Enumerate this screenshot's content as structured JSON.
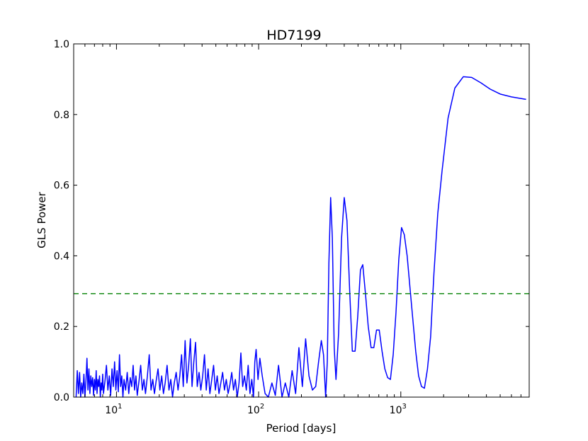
{
  "chart_data": {
    "type": "line",
    "title": "HD7199",
    "xlabel": "Period [days]",
    "ylabel": "GLS Power",
    "x_scale": "log",
    "xlim": [
      5,
      8000
    ],
    "ylim": [
      0.0,
      1.0
    ],
    "grid": false,
    "legend": "none",
    "x_ticks": [
      {
        "value": 10,
        "base": "10",
        "exp": "1"
      },
      {
        "value": 100,
        "base": "10",
        "exp": "2"
      },
      {
        "value": 1000,
        "base": "10",
        "exp": "3"
      }
    ],
    "y_ticks": [
      {
        "value": 0.0,
        "label": "0.0"
      },
      {
        "value": 0.2,
        "label": "0.2"
      },
      {
        "value": 0.4,
        "label": "0.4"
      },
      {
        "value": 0.6,
        "label": "0.6"
      },
      {
        "value": 0.8,
        "label": "0.8"
      },
      {
        "value": 1.0,
        "label": "1.0"
      }
    ],
    "threshold": {
      "y": 0.293,
      "color": "#008000",
      "style": "dashed"
    },
    "series": [
      {
        "color": "#0000ff",
        "points": [
          [
            5.2,
            0.0
          ],
          [
            5.3,
            0.075
          ],
          [
            5.4,
            0.01
          ],
          [
            5.5,
            0.07
          ],
          [
            5.6,
            0.0
          ],
          [
            5.7,
            0.04
          ],
          [
            5.8,
            0.01
          ],
          [
            5.9,
            0.065
          ],
          [
            6.0,
            0.0
          ],
          [
            6.1,
            0.045
          ],
          [
            6.2,
            0.11
          ],
          [
            6.3,
            0.02
          ],
          [
            6.4,
            0.08
          ],
          [
            6.5,
            0.01
          ],
          [
            6.6,
            0.06
          ],
          [
            6.7,
            0.03
          ],
          [
            6.8,
            0.055
          ],
          [
            6.9,
            0.005
          ],
          [
            7.0,
            0.05
          ],
          [
            7.1,
            0.02
          ],
          [
            7.2,
            0.075
          ],
          [
            7.3,
            0.01
          ],
          [
            7.4,
            0.05
          ],
          [
            7.5,
            0.03
          ],
          [
            7.6,
            0.06
          ],
          [
            7.7,
            0.0
          ],
          [
            7.8,
            0.04
          ],
          [
            7.9,
            0.02
          ],
          [
            8.0,
            0.065
          ],
          [
            8.1,
            0.01
          ],
          [
            8.3,
            0.045
          ],
          [
            8.5,
            0.09
          ],
          [
            8.7,
            0.02
          ],
          [
            8.9,
            0.06
          ],
          [
            9.1,
            0.005
          ],
          [
            9.3,
            0.08
          ],
          [
            9.5,
            0.03
          ],
          [
            9.7,
            0.1
          ],
          [
            9.9,
            0.02
          ],
          [
            10.1,
            0.075
          ],
          [
            10.3,
            0.015
          ],
          [
            10.5,
            0.12
          ],
          [
            10.7,
            0.03
          ],
          [
            10.9,
            0.06
          ],
          [
            11.1,
            0.0
          ],
          [
            11.3,
            0.05
          ],
          [
            11.6,
            0.02
          ],
          [
            11.9,
            0.07
          ],
          [
            12.2,
            0.01
          ],
          [
            12.5,
            0.055
          ],
          [
            12.8,
            0.03
          ],
          [
            13.1,
            0.09
          ],
          [
            13.4,
            0.02
          ],
          [
            13.7,
            0.06
          ],
          [
            14.0,
            0.005
          ],
          [
            14.4,
            0.045
          ],
          [
            14.8,
            0.09
          ],
          [
            15.2,
            0.02
          ],
          [
            15.6,
            0.05
          ],
          [
            16.0,
            0.01
          ],
          [
            16.5,
            0.06
          ],
          [
            17.0,
            0.12
          ],
          [
            17.5,
            0.02
          ],
          [
            18.0,
            0.05
          ],
          [
            18.5,
            0.01
          ],
          [
            19.0,
            0.045
          ],
          [
            19.6,
            0.08
          ],
          [
            20.2,
            0.02
          ],
          [
            20.8,
            0.06
          ],
          [
            21.4,
            0.01
          ],
          [
            22.0,
            0.04
          ],
          [
            22.7,
            0.09
          ],
          [
            23.4,
            0.02
          ],
          [
            24.1,
            0.05
          ],
          [
            24.8,
            0.0
          ],
          [
            25.5,
            0.04
          ],
          [
            26.3,
            0.07
          ],
          [
            27.1,
            0.02
          ],
          [
            27.9,
            0.06
          ],
          [
            28.7,
            0.12
          ],
          [
            29.5,
            0.03
          ],
          [
            30.4,
            0.16
          ],
          [
            31.3,
            0.04
          ],
          [
            32.2,
            0.09
          ],
          [
            33.1,
            0.165
          ],
          [
            34.0,
            0.03
          ],
          [
            35.0,
            0.1
          ],
          [
            36.0,
            0.155
          ],
          [
            37.0,
            0.03
          ],
          [
            38.1,
            0.07
          ],
          [
            39.2,
            0.02
          ],
          [
            40.4,
            0.06
          ],
          [
            41.6,
            0.12
          ],
          [
            42.8,
            0.02
          ],
          [
            44.1,
            0.08
          ],
          [
            45.4,
            0.01
          ],
          [
            46.8,
            0.05
          ],
          [
            48.2,
            0.09
          ],
          [
            49.6,
            0.02
          ],
          [
            51.1,
            0.06
          ],
          [
            52.6,
            0.01
          ],
          [
            54.2,
            0.04
          ],
          [
            55.8,
            0.07
          ],
          [
            57.5,
            0.02
          ],
          [
            59.2,
            0.05
          ],
          [
            61.0,
            0.01
          ],
          [
            62.8,
            0.035
          ],
          [
            64.7,
            0.07
          ],
          [
            66.6,
            0.02
          ],
          [
            68.6,
            0.05
          ],
          [
            70.7,
            0.0
          ],
          [
            72.8,
            0.04
          ],
          [
            75.0,
            0.125
          ],
          [
            77.2,
            0.03
          ],
          [
            79.5,
            0.06
          ],
          [
            81.9,
            0.02
          ],
          [
            84.4,
            0.09
          ],
          [
            86.9,
            0.01
          ],
          [
            89.5,
            0.05
          ],
          [
            92.0,
            0.0
          ],
          [
            94.0,
            0.1
          ],
          [
            96.0,
            0.135
          ],
          [
            99.0,
            0.05
          ],
          [
            102.0,
            0.11
          ],
          [
            106.0,
            0.06
          ],
          [
            111.0,
            0.01
          ],
          [
            117.0,
            0.0
          ],
          [
            124.0,
            0.04
          ],
          [
            131.0,
            0.005
          ],
          [
            138.0,
            0.09
          ],
          [
            146.0,
            0.0
          ],
          [
            154.0,
            0.04
          ],
          [
            163.0,
            0.0
          ],
          [
            172.0,
            0.075
          ],
          [
            182.0,
            0.01
          ],
          [
            192.0,
            0.14
          ],
          [
            203.0,
            0.03
          ],
          [
            214.0,
            0.165
          ],
          [
            226.0,
            0.06
          ],
          [
            239.0,
            0.02
          ],
          [
            252.0,
            0.03
          ],
          [
            264.0,
            0.1
          ],
          [
            276.0,
            0.16
          ],
          [
            286.0,
            0.12
          ],
          [
            296.0,
            0.0
          ],
          [
            304.0,
            0.1
          ],
          [
            312.0,
            0.38
          ],
          [
            321.0,
            0.565
          ],
          [
            330.0,
            0.45
          ],
          [
            340.0,
            0.14
          ],
          [
            350.0,
            0.05
          ],
          [
            365.0,
            0.18
          ],
          [
            383.0,
            0.45
          ],
          [
            400.0,
            0.565
          ],
          [
            418.0,
            0.5
          ],
          [
            437.0,
            0.3
          ],
          [
            456.0,
            0.13
          ],
          [
            477.0,
            0.13
          ],
          [
            498.0,
            0.23
          ],
          [
            520.0,
            0.36
          ],
          [
            540.0,
            0.375
          ],
          [
            565.0,
            0.29
          ],
          [
            590.0,
            0.2
          ],
          [
            618.0,
            0.14
          ],
          [
            646.0,
            0.14
          ],
          [
            675.0,
            0.19
          ],
          [
            705.0,
            0.19
          ],
          [
            738.0,
            0.13
          ],
          [
            772.0,
            0.08
          ],
          [
            808.0,
            0.055
          ],
          [
            845.0,
            0.05
          ],
          [
            884.0,
            0.12
          ],
          [
            925.0,
            0.24
          ],
          [
            968.0,
            0.39
          ],
          [
            1012.0,
            0.48
          ],
          [
            1058.0,
            0.46
          ],
          [
            1108.0,
            0.4
          ],
          [
            1160.0,
            0.31
          ],
          [
            1215.0,
            0.22
          ],
          [
            1273.0,
            0.13
          ],
          [
            1334.0,
            0.06
          ],
          [
            1398.0,
            0.03
          ],
          [
            1466.0,
            0.025
          ],
          [
            1540.0,
            0.08
          ],
          [
            1620.0,
            0.17
          ],
          [
            1710.0,
            0.35
          ],
          [
            1820.0,
            0.52
          ],
          [
            1950.0,
            0.64
          ],
          [
            2150.0,
            0.79
          ],
          [
            2400.0,
            0.875
          ],
          [
            2750.0,
            0.907
          ],
          [
            3150.0,
            0.905
          ],
          [
            3650.0,
            0.89
          ],
          [
            4250.0,
            0.872
          ],
          [
            5000.0,
            0.858
          ],
          [
            6000.0,
            0.85
          ],
          [
            7600.0,
            0.843
          ]
        ]
      }
    ]
  }
}
